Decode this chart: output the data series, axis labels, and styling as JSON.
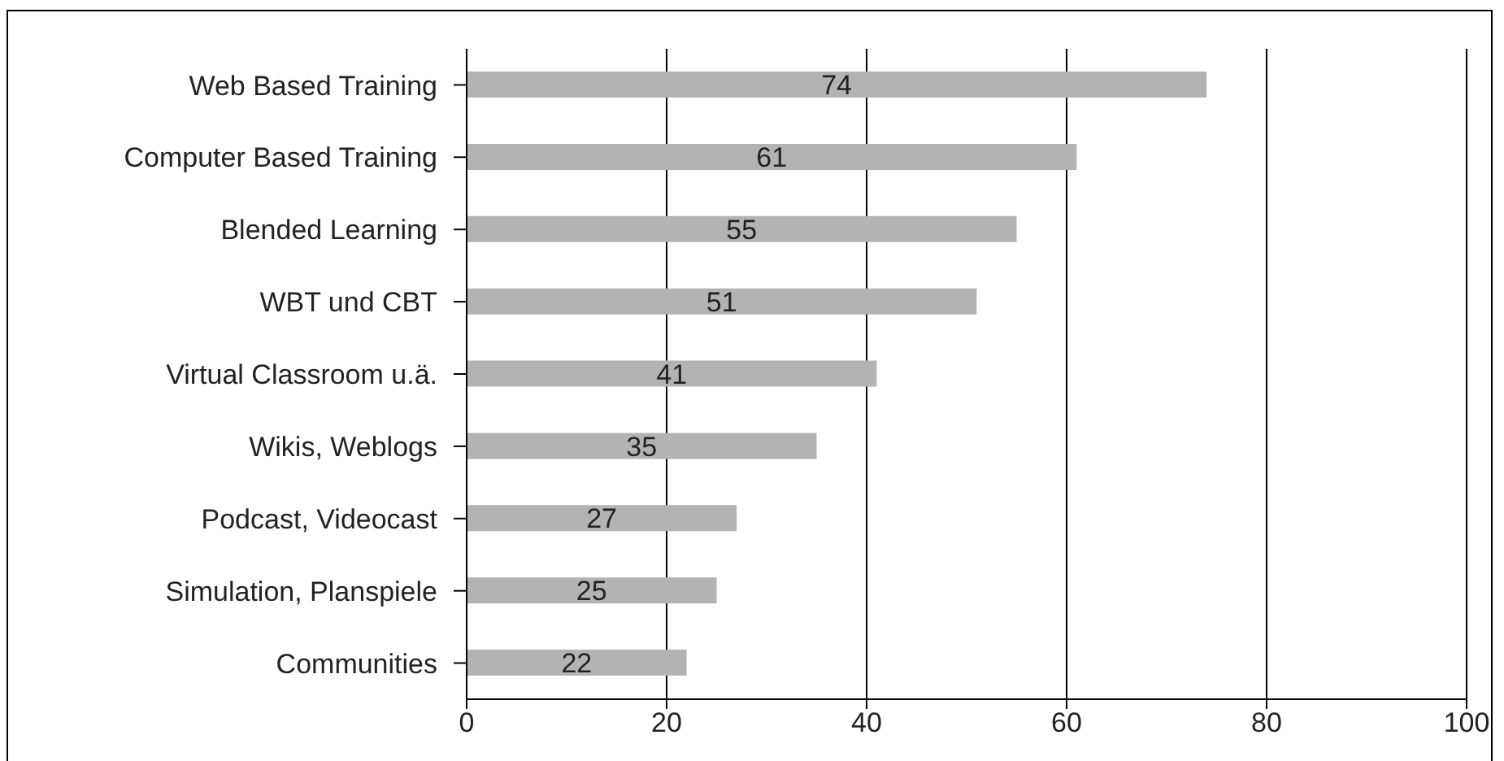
{
  "chart_data": {
    "type": "bar",
    "orientation": "horizontal",
    "categories": [
      "Web Based Training",
      "Computer Based Training",
      "Blended Learning",
      "WBT und CBT",
      "Virtual Classroom u.ä.",
      "Wikis, Weblogs",
      "Podcast, Videocast",
      "Simulation, Planspiele",
      "Communities"
    ],
    "values": [
      74,
      61,
      55,
      51,
      41,
      35,
      27,
      25,
      22
    ],
    "color": "#b3b3b3",
    "xlim": [
      0,
      100
    ],
    "xticks": [
      0,
      20,
      40,
      60,
      80,
      100
    ],
    "grid": "x",
    "data_labels": true
  }
}
